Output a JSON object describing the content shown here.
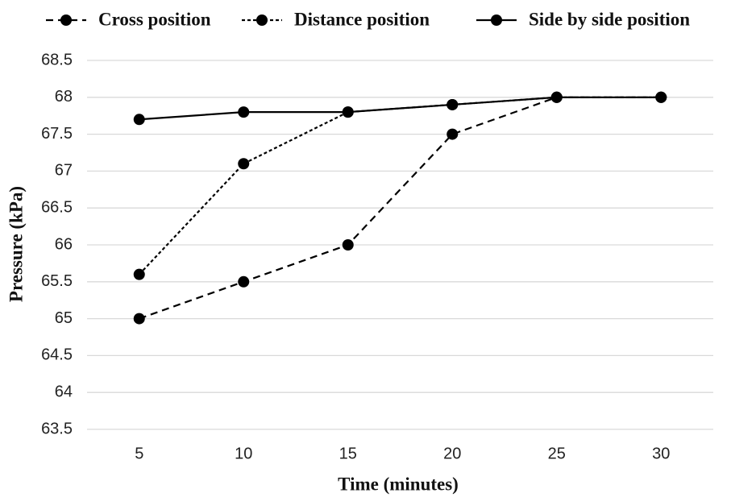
{
  "chart_data": {
    "type": "line",
    "x_label": "Time (minutes)",
    "y_label": "Pressure (kPa)",
    "categories": [
      "5",
      "10",
      "15",
      "20",
      "25",
      "30"
    ],
    "series": [
      {
        "name": "Cross position",
        "color": "#000000",
        "line_style": "dashed",
        "values": [
          65,
          65.5,
          66,
          67.5,
          68,
          68
        ]
      },
      {
        "name": "Distance position",
        "color": "#000000",
        "line_style": "dotted",
        "values": [
          65.6,
          67.1,
          67.8,
          67.9,
          68,
          68
        ]
      },
      {
        "name": "Side by side position",
        "color": "#000000",
        "line_style": "solid",
        "values": [
          67.7,
          67.8,
          67.8,
          67.9,
          68,
          68
        ]
      }
    ],
    "ylim": [
      63.5,
      68.5
    ],
    "yticks": [
      63.5,
      64,
      64.5,
      65,
      65.5,
      66,
      66.5,
      67,
      67.5,
      68,
      68.5
    ],
    "grid": true,
    "legend": "top"
  }
}
